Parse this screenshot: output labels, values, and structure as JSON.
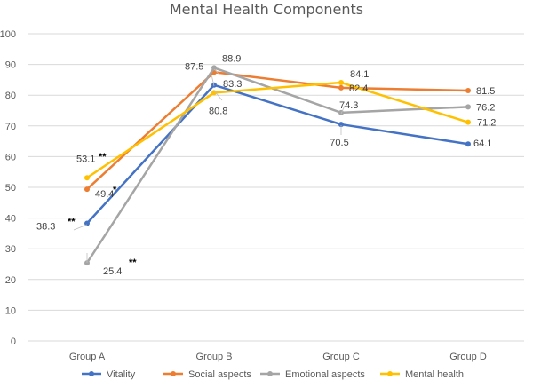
{
  "chart_data": {
    "type": "line",
    "title": "Mental Health Components",
    "xlabel": "",
    "ylabel": "",
    "categories": [
      "Group A",
      "Group B",
      "Group C",
      "Group D"
    ],
    "ylim": [
      0,
      100
    ],
    "yticks": [
      0,
      10,
      20,
      30,
      40,
      50,
      60,
      70,
      80,
      90,
      100
    ],
    "grid": true,
    "legend_position": "bottom",
    "series": [
      {
        "name": "Vitality",
        "color": "#4472C4",
        "values": [
          38.3,
          83.3,
          70.5,
          64.1
        ]
      },
      {
        "name": "Social aspects",
        "color": "#ED7D31",
        "values": [
          49.4,
          87.5,
          82.4,
          81.5
        ]
      },
      {
        "name": "Emotional aspects",
        "color": "#A5A5A5",
        "values": [
          25.4,
          88.9,
          74.3,
          76.2
        ]
      },
      {
        "name": "Mental health",
        "color": "#FFC000",
        "values": [
          53.1,
          80.8,
          84.1,
          71.2
        ]
      }
    ],
    "data_labels": [
      {
        "series": 0,
        "index": 0,
        "text": "38.3"
      },
      {
        "series": 0,
        "index": 1,
        "text": "83.3"
      },
      {
        "series": 0,
        "index": 2,
        "text": "70.5"
      },
      {
        "series": 0,
        "index": 3,
        "text": "64.1"
      },
      {
        "series": 1,
        "index": 0,
        "text": "49.4"
      },
      {
        "series": 1,
        "index": 1,
        "text": "87.5"
      },
      {
        "series": 1,
        "index": 2,
        "text": "82.4"
      },
      {
        "series": 1,
        "index": 3,
        "text": "81.5"
      },
      {
        "series": 2,
        "index": 0,
        "text": "25.4"
      },
      {
        "series": 2,
        "index": 1,
        "text": "88.9"
      },
      {
        "series": 2,
        "index": 2,
        "text": "74.3"
      },
      {
        "series": 2,
        "index": 3,
        "text": "76.2"
      },
      {
        "series": 3,
        "index": 0,
        "text": "53.1"
      },
      {
        "series": 3,
        "index": 1,
        "text": "80.8"
      },
      {
        "series": 3,
        "index": 2,
        "text": "84.1"
      },
      {
        "series": 3,
        "index": 3,
        "text": "71.2"
      }
    ],
    "annotations": [
      {
        "text": "**",
        "series": 3,
        "index": 0
      },
      {
        "text": "*",
        "series": 1,
        "index": 0
      },
      {
        "text": "**",
        "series": 0,
        "index": 0
      },
      {
        "text": "**",
        "series": 2,
        "index": 0
      }
    ]
  }
}
